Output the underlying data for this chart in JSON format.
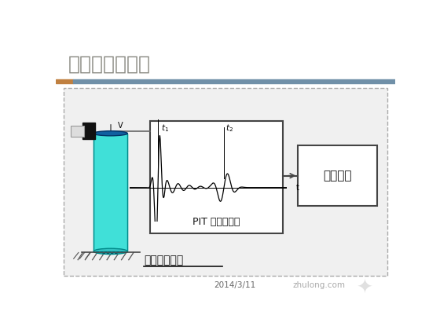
{
  "title": "现场检测流通图",
  "title_fontsize": 18,
  "date_text": "2014/3/11",
  "watermark_text": "zhulong.com",
  "pit_label": "PIT 基桩测试仪",
  "output_label": "输出设备",
  "sensor_label": "加速度传感器",
  "bg_color": "#ffffff",
  "title_color": "#888880",
  "header_bar_color1": "#c08040",
  "header_bar_color2": "#7090a8",
  "diagram_bg": "#f0f0f0",
  "pit_box_color": "#ffffff",
  "output_box_color": "#ffffff",
  "cylinder_color": "#40e0d8",
  "cylinder_dark": "#1060a0",
  "hammer_color": "#222222",
  "signal_color": "#000000",
  "box_border_color": "#444444",
  "outer_border_color": "#aaaaaa"
}
